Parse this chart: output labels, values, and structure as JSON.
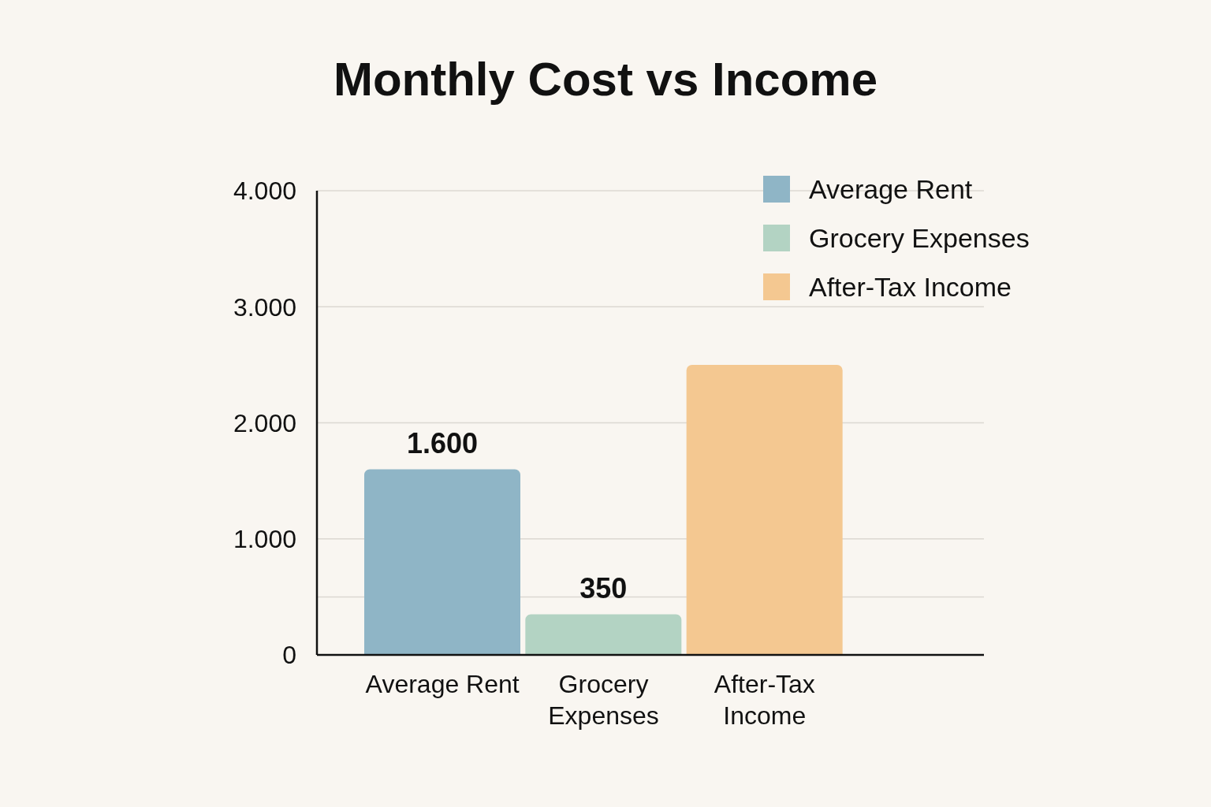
{
  "chart_data": {
    "type": "bar",
    "title": "Monthly Cost vs Income",
    "categories": [
      "Average Rent",
      "Grocery Expenses",
      "After-Tax Income"
    ],
    "stacked": true,
    "series": [
      {
        "name": "Average Rent",
        "color": "#8fb5c6",
        "values": [
          1600,
          null,
          null
        ],
        "value_labels": [
          "1.600",
          null,
          null
        ]
      },
      {
        "name": "Grocery Expenses",
        "color": "#b3d3c3",
        "values": [
          null,
          350,
          null
        ],
        "value_labels": [
          null,
          "350",
          null
        ]
      },
      {
        "name": "After-Tax Income",
        "color": "#f4c891",
        "values": [
          null,
          null,
          2500
        ]
      }
    ],
    "ylim": [
      0,
      4000
    ],
    "yticks": [
      {
        "value": 0,
        "label": "0"
      },
      {
        "value": 500,
        "label": null
      },
      {
        "value": 1000,
        "label": "1.000"
      },
      {
        "value": 2000,
        "label": "2.000"
      },
      {
        "value": 3000,
        "label": "3.000"
      },
      {
        "value": 4000,
        "label": "4.000"
      }
    ],
    "grid": "y",
    "legend": "top right"
  }
}
